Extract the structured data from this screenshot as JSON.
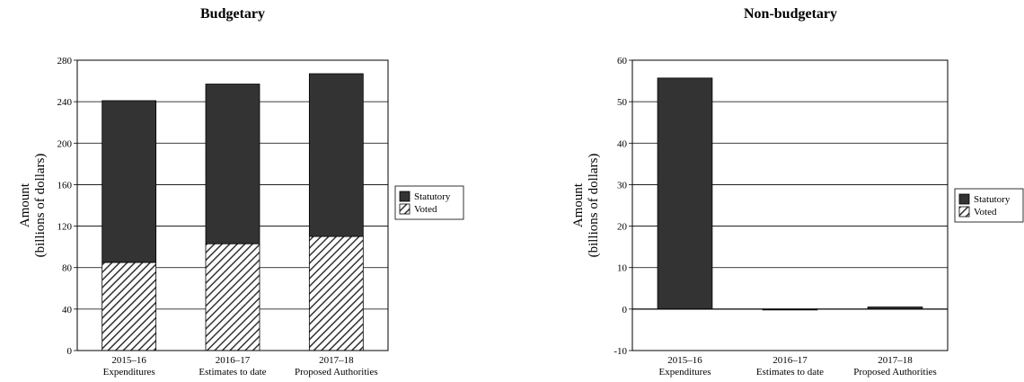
{
  "chart_data": [
    {
      "type": "bar",
      "stacked": true,
      "title": "Budgetary",
      "ylabel": [
        "Amount",
        "(billions of dollars)"
      ],
      "categories": [
        [
          "2015–16",
          "Expenditures"
        ],
        [
          "2016–17",
          "Estimates to date"
        ],
        [
          "2017–18",
          "Proposed Authorities"
        ]
      ],
      "series": [
        {
          "name": "Voted",
          "values": [
            85,
            103,
            110
          ],
          "pattern": "hatched"
        },
        {
          "name": "Statutory",
          "values": [
            156,
            154,
            157
          ],
          "color": "#333333"
        }
      ],
      "ylim": [
        0,
        280
      ],
      "yticks": [
        0,
        40,
        80,
        120,
        160,
        200,
        240,
        280
      ],
      "grid": true,
      "legend": "right"
    },
    {
      "type": "bar",
      "stacked": true,
      "title": "Non-budgetary",
      "ylabel": [
        "Amount",
        "(billions of dollars)"
      ],
      "categories": [
        [
          "2015–16",
          "Expenditures"
        ],
        [
          "2016–17",
          "Estimates to date"
        ],
        [
          "2017–18",
          "Proposed Authorities"
        ]
      ],
      "series": [
        {
          "name": "Voted",
          "values": [
            0,
            0,
            0
          ],
          "pattern": "hatched"
        },
        {
          "name": "Statutory",
          "values": [
            55.7,
            -0.2,
            0.5
          ],
          "color": "#333333"
        }
      ],
      "ylim": [
        -10,
        60
      ],
      "yticks": [
        -10,
        0,
        10,
        20,
        30,
        40,
        50,
        60
      ],
      "grid": true,
      "legend": "right"
    }
  ],
  "legend_entries": [
    "Statutory",
    "Voted"
  ],
  "colors": {
    "statutory": "#333333",
    "voted_hatch": "#333333",
    "background": "#ffffff"
  }
}
